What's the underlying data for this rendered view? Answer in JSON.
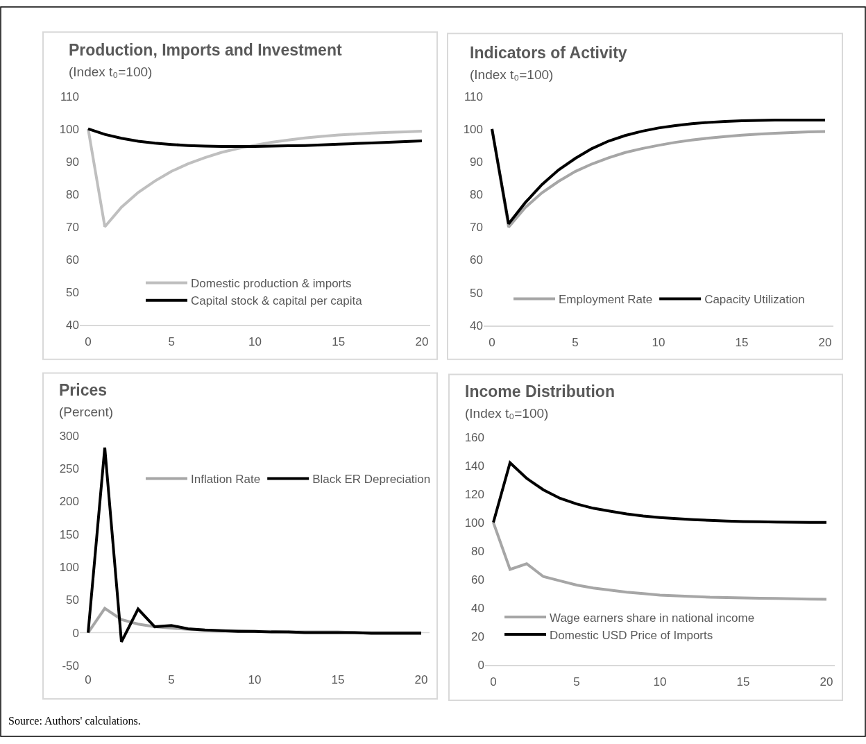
{
  "chart_data": [
    {
      "type": "line",
      "title": "Production, Imports and Investment",
      "subtitle": "(Index t₀=100)",
      "x": [
        0,
        1,
        2,
        3,
        4,
        5,
        6,
        7,
        8,
        9,
        10,
        11,
        12,
        13,
        14,
        15,
        16,
        17,
        18,
        19,
        20
      ],
      "xlim": [
        -0.5,
        20.5
      ],
      "xticks": [
        0,
        5,
        10,
        15,
        20
      ],
      "ylim": [
        40,
        110
      ],
      "yticks": [
        40,
        50,
        60,
        70,
        80,
        90,
        100,
        110
      ],
      "grid": false,
      "legend": "bottom",
      "marker": "none",
      "line_style": "solid",
      "series": [
        {
          "name": "Domestic production & imports",
          "color": "#bfbfbf",
          "values": [
            100,
            70,
            76,
            80.5,
            84,
            87,
            89.3,
            91.2,
            92.8,
            94,
            95,
            95.9,
            96.6,
            97.2,
            97.7,
            98.1,
            98.4,
            98.7,
            98.9,
            99.1,
            99.3
          ]
        },
        {
          "name": "Capital stock & capital per capita",
          "color": "#000000",
          "values": [
            100,
            98.3,
            97.1,
            96.2,
            95.6,
            95.2,
            94.9,
            94.7,
            94.6,
            94.6,
            94.6,
            94.7,
            94.8,
            94.9,
            95.1,
            95.3,
            95.5,
            95.7,
            95.9,
            96.1,
            96.3
          ]
        }
      ]
    },
    {
      "type": "line",
      "title": "Indicators of Activity",
      "subtitle": "(Index t₀=100)",
      "x": [
        0,
        1,
        2,
        3,
        4,
        5,
        6,
        7,
        8,
        9,
        10,
        11,
        12,
        13,
        14,
        15,
        16,
        17,
        18,
        19,
        20
      ],
      "xlim": [
        -0.5,
        20.5
      ],
      "xticks": [
        0,
        5,
        10,
        15,
        20
      ],
      "ylim": [
        40,
        110
      ],
      "yticks": [
        40,
        50,
        60,
        70,
        80,
        90,
        100,
        110
      ],
      "grid": false,
      "legend": "bottom",
      "marker": "none",
      "line_style": "solid",
      "series": [
        {
          "name": "Employment Rate",
          "color": "#a6a6a6",
          "values": [
            100,
            70,
            76,
            80.5,
            84,
            87,
            89.3,
            91.2,
            92.8,
            94,
            95,
            95.9,
            96.6,
            97.2,
            97.7,
            98.1,
            98.4,
            98.7,
            98.9,
            99.1,
            99.2
          ]
        },
        {
          "name": "Capacity Utilization",
          "color": "#000000",
          "values": [
            100,
            71,
            77.5,
            83,
            87.5,
            91,
            94,
            96.3,
            98,
            99.3,
            100.3,
            101,
            101.6,
            102,
            102.3,
            102.5,
            102.6,
            102.7,
            102.7,
            102.7,
            102.7
          ]
        }
      ]
    },
    {
      "type": "line",
      "title": "Prices",
      "subtitle": "(Percent)",
      "x": [
        0,
        1,
        2,
        3,
        4,
        5,
        6,
        7,
        8,
        9,
        10,
        11,
        12,
        13,
        14,
        15,
        16,
        17,
        18,
        19,
        20
      ],
      "xlim": [
        -0.5,
        20.5
      ],
      "xticks": [
        0,
        5,
        10,
        15,
        20
      ],
      "ylim": [
        -50,
        300
      ],
      "yticks": [
        -50,
        0,
        50,
        100,
        150,
        200,
        250,
        300
      ],
      "grid": false,
      "legend": "top right",
      "marker": "none",
      "line_style": "solid",
      "series": [
        {
          "name": "Inflation Rate",
          "color": "#a6a6a6",
          "values": [
            0,
            37,
            20,
            13,
            9,
            7,
            5,
            4,
            3,
            3,
            2,
            2,
            1,
            1,
            1,
            1,
            0,
            0,
            0,
            0,
            0
          ]
        },
        {
          "name": "Black ER Depreciation",
          "color": "#000000",
          "values": [
            0,
            282,
            -14,
            36,
            9,
            11,
            6,
            4,
            3,
            2,
            2,
            1,
            1,
            0,
            0,
            0,
            0,
            -1,
            -1,
            -1,
            -1
          ]
        }
      ],
      "ref_lines": [
        {
          "axis": "y",
          "value": 0,
          "color": "#d9d9d9"
        }
      ]
    },
    {
      "type": "line",
      "title": "Income Distribution",
      "subtitle": "(Index t₀=100)",
      "x": [
        0,
        1,
        2,
        3,
        4,
        5,
        6,
        7,
        8,
        9,
        10,
        11,
        12,
        13,
        14,
        15,
        16,
        17,
        18,
        19,
        20
      ],
      "xlim": [
        -0.5,
        20.5
      ],
      "xticks": [
        0,
        5,
        10,
        15,
        20
      ],
      "ylim": [
        0,
        160
      ],
      "yticks": [
        0,
        20,
        40,
        60,
        80,
        100,
        120,
        140,
        160
      ],
      "grid": false,
      "legend": "bottom left",
      "marker": "none",
      "line_style": "solid",
      "series": [
        {
          "name": "Wage earners share in national income",
          "color": "#a6a6a6",
          "values": [
            100,
            67,
            71,
            62,
            59,
            56,
            54,
            52.5,
            51,
            50,
            49,
            48.5,
            48,
            47.5,
            47.3,
            47,
            46.8,
            46.6,
            46.4,
            46.2,
            46
          ]
        },
        {
          "name": "Domestic USD Price of Imports",
          "color": "#000000",
          "values": [
            100,
            142,
            131,
            123,
            117,
            113,
            110,
            108,
            106,
            104.5,
            103.5,
            102.7,
            102,
            101.5,
            101,
            100.7,
            100.5,
            100.3,
            100.2,
            100.1,
            100
          ]
        }
      ],
      "annotations": [
        "Source: Authors' calculations."
      ]
    }
  ]
}
